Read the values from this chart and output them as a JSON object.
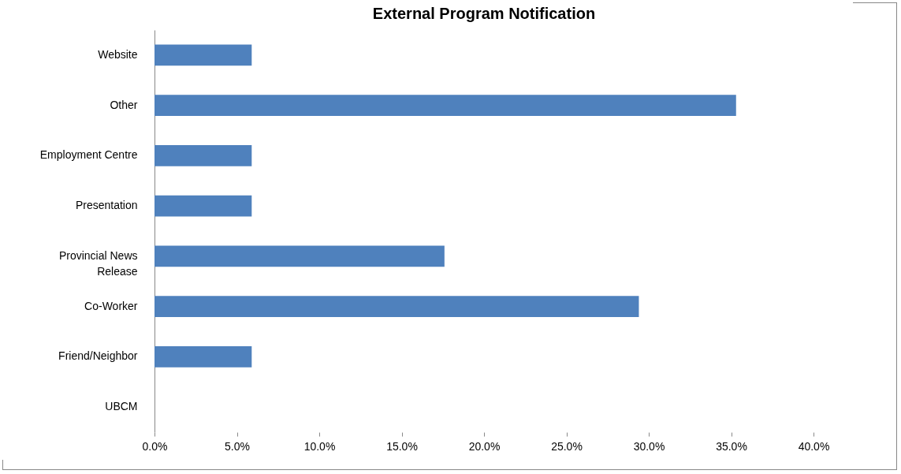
{
  "chart_data": {
    "type": "bar",
    "orientation": "horizontal",
    "title": "External Program Notification",
    "categories": [
      "Website",
      "Other",
      "Employment Centre",
      "Presentation",
      "Provincial News Release",
      "Co-Worker",
      "Friend/Neighbor",
      "UBCM"
    ],
    "values": [
      5.9,
      35.3,
      5.9,
      5.9,
      17.6,
      29.4,
      5.9,
      0
    ],
    "color": "#4f81bd",
    "xlim": [
      0,
      40
    ],
    "xticks": [
      {
        "value": 0,
        "label": "0.0%"
      },
      {
        "value": 5,
        "label": "5.0%"
      },
      {
        "value": 10,
        "label": "10.0%"
      },
      {
        "value": 15,
        "label": "15.0%"
      },
      {
        "value": 20,
        "label": "20.0%"
      },
      {
        "value": 25,
        "label": "25.0%"
      },
      {
        "value": 30,
        "label": "30.0%"
      },
      {
        "value": 35,
        "label": "35.0%"
      },
      {
        "value": 40,
        "label": "40.0%"
      }
    ],
    "grid": false
  }
}
